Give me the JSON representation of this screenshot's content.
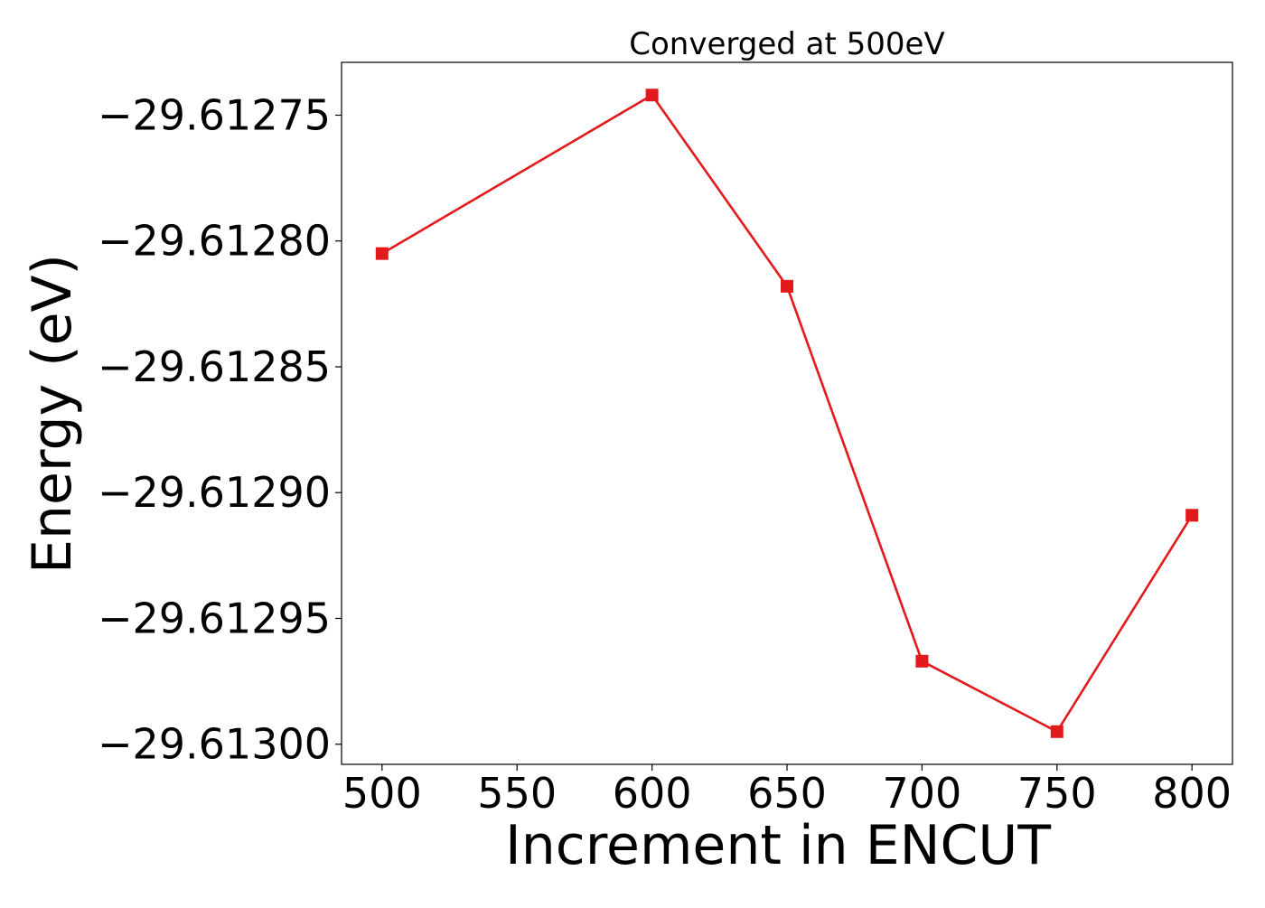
{
  "chart_data": {
    "type": "line",
    "title": "Converged at 500eV",
    "xlabel": "Increment in ENCUT",
    "ylabel": "Energy (eV)",
    "x": [
      500,
      600,
      650,
      700,
      750,
      800
    ],
    "series": [
      {
        "values": [
          -29.612805,
          -29.612742,
          -29.612818,
          -29.612967,
          -29.612995,
          -29.612909
        ],
        "color": "#e31a1c",
        "marker": "square"
      }
    ],
    "xlim": [
      485,
      815
    ],
    "ylim": [
      -29.613008,
      -29.612729
    ],
    "xticks": [
      500,
      550,
      600,
      650,
      700,
      750,
      800
    ],
    "xtick_labels": [
      "500",
      "550",
      "600",
      "650",
      "700",
      "750",
      "800"
    ],
    "yticks": [
      -29.61275,
      -29.6128,
      -29.61285,
      -29.6129,
      -29.61295,
      -29.613
    ],
    "ytick_labels": [
      "−29.61275",
      "−29.61280",
      "−29.61285",
      "−29.61290",
      "−29.61295",
      "−29.61300"
    ],
    "grid": false,
    "legend": "none"
  }
}
